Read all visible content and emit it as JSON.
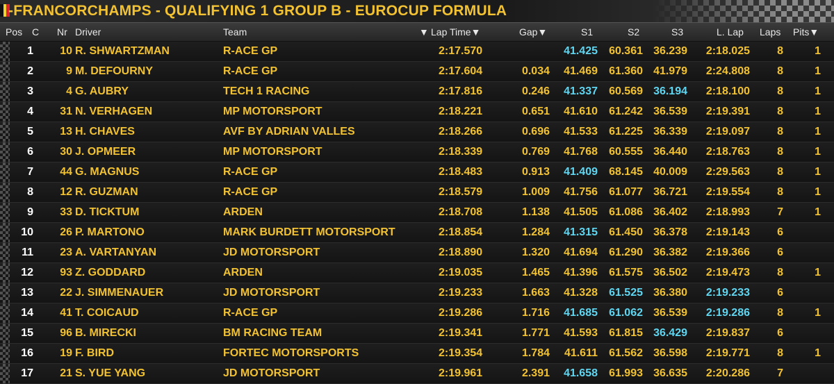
{
  "header": {
    "title": "-FRANCORCHAMPS - QUALIFYING 1 GROUP B - EUROCUP FORMULA",
    "flag_colors": [
      "#111111",
      "#f2d232",
      "#e0222a"
    ]
  },
  "columns": {
    "pos": "Pos",
    "c": "C",
    "nr": "Nr",
    "driver": "Driver",
    "team": "Team",
    "lap_time": "Lap Time",
    "gap": "Gap",
    "s1": "S1",
    "s2": "S2",
    "s3": "S3",
    "last_lap": "L. Lap",
    "laps": "Laps",
    "pits": "Pits"
  },
  "colors": {
    "text": "#f2c233",
    "position": "#ffffff",
    "best_sector": "#5fd6f2",
    "background": "#0b0b0b"
  },
  "rows": [
    {
      "pos": "1",
      "nr": "10",
      "driver": "R. SHWARTZMAN",
      "team": "R-ACE GP",
      "lap_time": "2:17.570",
      "gap": "",
      "s1": "41.425",
      "s2": "60.361",
      "s3": "36.239",
      "last_lap": "2:18.025",
      "laps": "8",
      "pits": "1",
      "best": [
        "s1"
      ]
    },
    {
      "pos": "2",
      "nr": "9",
      "driver": "M. DEFOURNY",
      "team": "R-ACE GP",
      "lap_time": "2:17.604",
      "gap": "0.034",
      "s1": "41.469",
      "s2": "61.360",
      "s3": "41.979",
      "last_lap": "2:24.808",
      "laps": "8",
      "pits": "1",
      "best": []
    },
    {
      "pos": "3",
      "nr": "4",
      "driver": "G. AUBRY",
      "team": "TECH 1 RACING",
      "lap_time": "2:17.816",
      "gap": "0.246",
      "s1": "41.337",
      "s2": "60.569",
      "s3": "36.194",
      "last_lap": "2:18.100",
      "laps": "8",
      "pits": "1",
      "best": [
        "s1",
        "s3"
      ]
    },
    {
      "pos": "4",
      "nr": "31",
      "driver": "N. VERHAGEN",
      "team": "MP MOTORSPORT",
      "lap_time": "2:18.221",
      "gap": "0.651",
      "s1": "41.610",
      "s2": "61.242",
      "s3": "36.539",
      "last_lap": "2:19.391",
      "laps": "8",
      "pits": "1",
      "best": []
    },
    {
      "pos": "5",
      "nr": "13",
      "driver": "H. CHAVES",
      "team": "AVF BY ADRIAN VALLES",
      "lap_time": "2:18.266",
      "gap": "0.696",
      "s1": "41.533",
      "s2": "61.225",
      "s3": "36.339",
      "last_lap": "2:19.097",
      "laps": "8",
      "pits": "1",
      "best": []
    },
    {
      "pos": "6",
      "nr": "30",
      "driver": "J. OPMEER",
      "team": "MP MOTORSPORT",
      "lap_time": "2:18.339",
      "gap": "0.769",
      "s1": "41.768",
      "s2": "60.555",
      "s3": "36.440",
      "last_lap": "2:18.763",
      "laps": "8",
      "pits": "1",
      "best": []
    },
    {
      "pos": "7",
      "nr": "44",
      "driver": "G. MAGNUS",
      "team": "R-ACE GP",
      "lap_time": "2:18.483",
      "gap": "0.913",
      "s1": "41.409",
      "s2": "68.145",
      "s3": "40.009",
      "last_lap": "2:29.563",
      "laps": "8",
      "pits": "1",
      "best": [
        "s1"
      ]
    },
    {
      "pos": "8",
      "nr": "12",
      "driver": "R. GUZMAN",
      "team": "R-ACE GP",
      "lap_time": "2:18.579",
      "gap": "1.009",
      "s1": "41.756",
      "s2": "61.077",
      "s3": "36.721",
      "last_lap": "2:19.554",
      "laps": "8",
      "pits": "1",
      "best": []
    },
    {
      "pos": "9",
      "nr": "33",
      "driver": "D. TICKTUM",
      "team": "ARDEN",
      "lap_time": "2:18.708",
      "gap": "1.138",
      "s1": "41.505",
      "s2": "61.086",
      "s3": "36.402",
      "last_lap": "2:18.993",
      "laps": "7",
      "pits": "1",
      "best": []
    },
    {
      "pos": "10",
      "nr": "26",
      "driver": "P. MARTONO",
      "team": "MARK BURDETT MOTORSPORT",
      "lap_time": "2:18.854",
      "gap": "1.284",
      "s1": "41.315",
      "s2": "61.450",
      "s3": "36.378",
      "last_lap": "2:19.143",
      "laps": "6",
      "pits": "",
      "best": [
        "s1"
      ]
    },
    {
      "pos": "11",
      "nr": "23",
      "driver": "A. VARTANYAN",
      "team": "JD MOTORSPORT",
      "lap_time": "2:18.890",
      "gap": "1.320",
      "s1": "41.694",
      "s2": "61.290",
      "s3": "36.382",
      "last_lap": "2:19.366",
      "laps": "6",
      "pits": "",
      "best": []
    },
    {
      "pos": "12",
      "nr": "93",
      "driver": "Z. GODDARD",
      "team": "ARDEN",
      "lap_time": "2:19.035",
      "gap": "1.465",
      "s1": "41.396",
      "s2": "61.575",
      "s3": "36.502",
      "last_lap": "2:19.473",
      "laps": "8",
      "pits": "1",
      "best": []
    },
    {
      "pos": "13",
      "nr": "22",
      "driver": "J. SIMMENAUER",
      "team": "JD MOTORSPORT",
      "lap_time": "2:19.233",
      "gap": "1.663",
      "s1": "41.328",
      "s2": "61.525",
      "s3": "36.380",
      "last_lap": "2:19.233",
      "laps": "6",
      "pits": "",
      "best": [
        "s2",
        "last_lap"
      ]
    },
    {
      "pos": "14",
      "nr": "41",
      "driver": "T. COICAUD",
      "team": "R-ACE GP",
      "lap_time": "2:19.286",
      "gap": "1.716",
      "s1": "41.685",
      "s2": "61.062",
      "s3": "36.539",
      "last_lap": "2:19.286",
      "laps": "8",
      "pits": "1",
      "best": [
        "s1",
        "s2",
        "last_lap"
      ]
    },
    {
      "pos": "15",
      "nr": "96",
      "driver": "B. MIRECKI",
      "team": "BM RACING TEAM",
      "lap_time": "2:19.341",
      "gap": "1.771",
      "s1": "41.593",
      "s2": "61.815",
      "s3": "36.429",
      "last_lap": "2:19.837",
      "laps": "6",
      "pits": "",
      "best": [
        "s3"
      ]
    },
    {
      "pos": "16",
      "nr": "19",
      "driver": "F. BIRD",
      "team": "FORTEC MOTORSPORTS",
      "lap_time": "2:19.354",
      "gap": "1.784",
      "s1": "41.611",
      "s2": "61.562",
      "s3": "36.598",
      "last_lap": "2:19.771",
      "laps": "8",
      "pits": "1",
      "best": []
    },
    {
      "pos": "17",
      "nr": "21",
      "driver": "S. YUE YANG",
      "team": "JD MOTORSPORT",
      "lap_time": "2:19.961",
      "gap": "2.391",
      "s1": "41.658",
      "s2": "61.993",
      "s3": "36.635",
      "last_lap": "2:20.286",
      "laps": "7",
      "pits": "",
      "best": [
        "s1"
      ]
    }
  ]
}
